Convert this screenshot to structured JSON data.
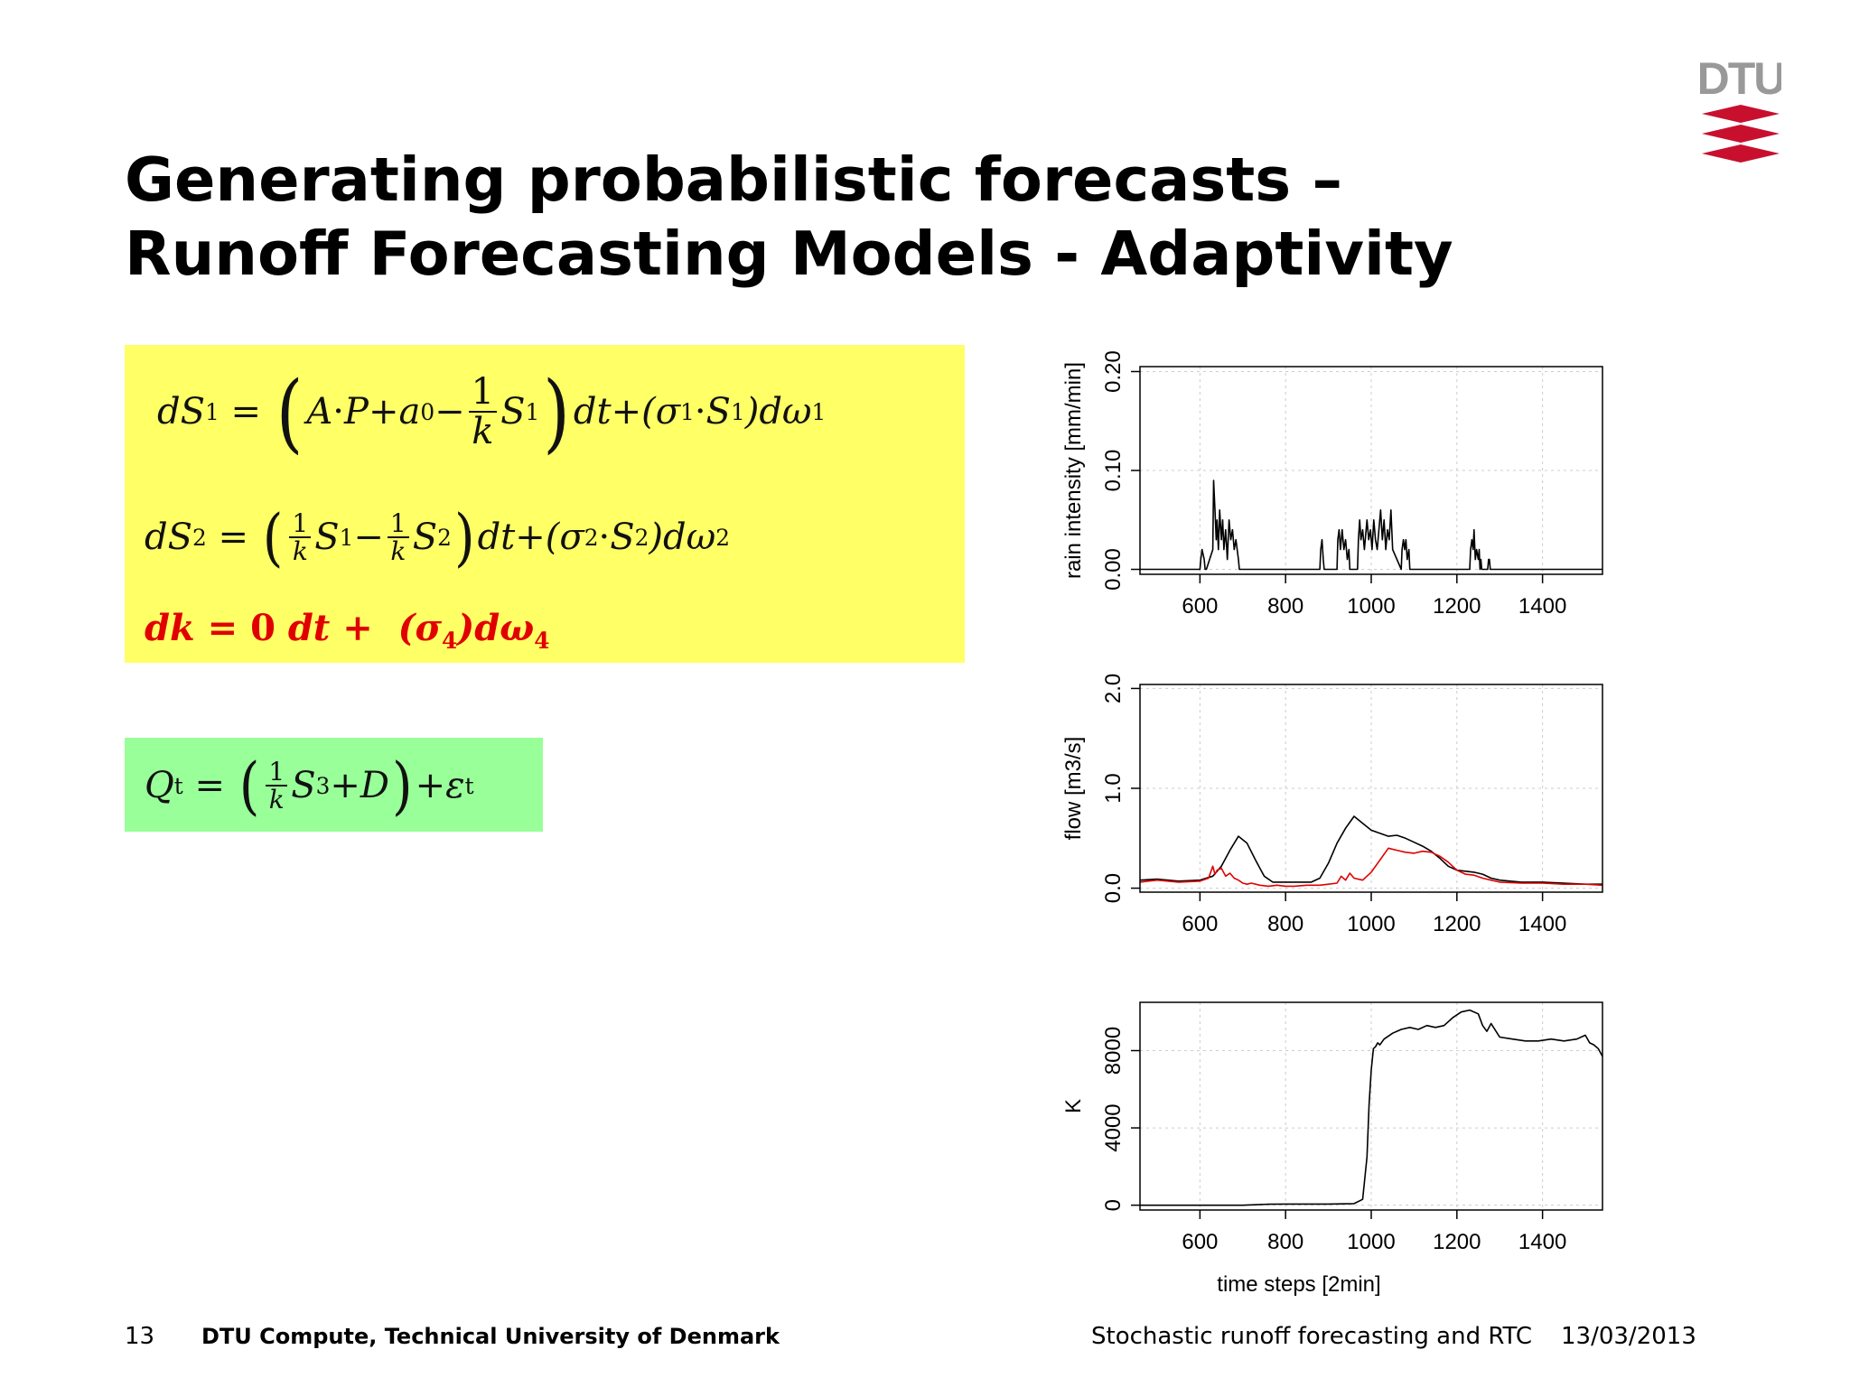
{
  "slide": {
    "title_line1": "Generating probabilistic forecasts –",
    "title_line2": "Runoff Forecasting Models - Adaptivity",
    "logo_text": "DTU",
    "page_number": "13",
    "organization": "DTU Compute, Technical University of Denmark",
    "presentation_title": "Stochastic runoff forecasting and RTC",
    "date": "13/03/2013"
  },
  "colors": {
    "yellow_box": "#ffff66",
    "green_box": "#99ff99",
    "highlight_red": "#e00000",
    "logo_red": "#c8102e",
    "logo_gray": "#999999"
  },
  "chart_data": [
    {
      "type": "line",
      "title": "",
      "xlabel": "",
      "ylabel": "rain intensity [mm/min]",
      "xlim": [
        460,
        1540
      ],
      "ylim": [
        -0.005,
        0.205
      ],
      "xticks": [
        600,
        800,
        1000,
        1200,
        1400
      ],
      "yticks": [
        "0.00",
        "0.10",
        "0.20"
      ],
      "grid": true,
      "series": [
        {
          "color": "#000000",
          "x": [
            460,
            600,
            602,
            605,
            610,
            612,
            615,
            630,
            632,
            635,
            638,
            640,
            643,
            646,
            650,
            653,
            656,
            660,
            664,
            668,
            672,
            676,
            680,
            684,
            690,
            692,
            880,
            882,
            885,
            888,
            890,
            920,
            922,
            925,
            928,
            932,
            936,
            940,
            944,
            948,
            950,
            968,
            970,
            973,
            976,
            980,
            984,
            990,
            994,
            998,
            1002,
            1006,
            1010,
            1014,
            1018,
            1022,
            1026,
            1030,
            1034,
            1038,
            1042,
            1046,
            1050,
            1070,
            1072,
            1075,
            1078,
            1081,
            1084,
            1088,
            1090,
            1230,
            1232,
            1235,
            1238,
            1240,
            1243,
            1246,
            1250,
            1252,
            1254,
            1256,
            1258,
            1272,
            1274,
            1276,
            1278,
            1280,
            1540
          ],
          "y": [
            0,
            0,
            0.01,
            0.02,
            0.01,
            0,
            0,
            0.02,
            0.09,
            0.06,
            0.03,
            0.05,
            0.02,
            0.06,
            0.03,
            0.05,
            0.02,
            0.04,
            0.01,
            0.05,
            0.03,
            0.04,
            0.02,
            0.03,
            0.01,
            0,
            0,
            0.02,
            0.03,
            0.01,
            0,
            0,
            0.03,
            0.04,
            0.02,
            0.04,
            0.02,
            0.03,
            0.01,
            0.02,
            0,
            0,
            0.03,
            0.05,
            0.03,
            0.04,
            0.02,
            0.05,
            0.03,
            0.04,
            0.02,
            0.05,
            0.03,
            0.02,
            0.04,
            0.06,
            0.03,
            0.05,
            0.02,
            0.04,
            0.03,
            0.06,
            0.02,
            0,
            0.02,
            0.03,
            0.02,
            0.03,
            0.01,
            0.02,
            0,
            0,
            0.02,
            0.03,
            0.02,
            0.04,
            0.01,
            0.02,
            0.01,
            0.02,
            0,
            0.01,
            0,
            0,
            0.01,
            0.01,
            0,
            0,
            0
          ]
        }
      ]
    },
    {
      "type": "line",
      "title": "",
      "xlabel": "",
      "ylabel": "flow [m3/s]",
      "xlim": [
        460,
        1540
      ],
      "ylim": [
        -0.04,
        2.04
      ],
      "xticks": [
        600,
        800,
        1000,
        1200,
        1400
      ],
      "yticks": [
        "0.0",
        "1.0",
        "2.0"
      ],
      "grid": true,
      "series": [
        {
          "color": "#000000",
          "x": [
            460,
            500,
            550,
            600,
            630,
            650,
            670,
            690,
            710,
            730,
            750,
            770,
            790,
            820,
            860,
            880,
            900,
            920,
            940,
            960,
            980,
            1000,
            1020,
            1040,
            1060,
            1080,
            1100,
            1120,
            1140,
            1160,
            1180,
            1200,
            1220,
            1240,
            1260,
            1280,
            1300,
            1350,
            1400,
            1450,
            1500,
            1540
          ],
          "y": [
            0.08,
            0.09,
            0.07,
            0.08,
            0.12,
            0.22,
            0.38,
            0.52,
            0.45,
            0.28,
            0.12,
            0.06,
            0.06,
            0.06,
            0.06,
            0.1,
            0.25,
            0.45,
            0.6,
            0.72,
            0.65,
            0.58,
            0.55,
            0.52,
            0.53,
            0.5,
            0.46,
            0.42,
            0.37,
            0.3,
            0.22,
            0.18,
            0.17,
            0.16,
            0.14,
            0.1,
            0.08,
            0.06,
            0.06,
            0.05,
            0.04,
            0.04
          ]
        },
        {
          "color": "#e00000",
          "x": [
            460,
            500,
            550,
            600,
            620,
            630,
            635,
            640,
            650,
            660,
            670,
            680,
            690,
            700,
            710,
            720,
            740,
            760,
            780,
            800,
            820,
            850,
            880,
            900,
            920,
            930,
            940,
            950,
            960,
            980,
            1000,
            1020,
            1040,
            1060,
            1080,
            1100,
            1120,
            1140,
            1160,
            1180,
            1200,
            1220,
            1240,
            1260,
            1280,
            1300,
            1350,
            1400,
            1450,
            1500,
            1540
          ],
          "y": [
            0.06,
            0.08,
            0.06,
            0.07,
            0.1,
            0.22,
            0.14,
            0.18,
            0.2,
            0.12,
            0.15,
            0.1,
            0.08,
            0.05,
            0.04,
            0.05,
            0.03,
            0.02,
            0.03,
            0.02,
            0.02,
            0.03,
            0.03,
            0.04,
            0.05,
            0.12,
            0.08,
            0.15,
            0.1,
            0.08,
            0.16,
            0.28,
            0.4,
            0.38,
            0.36,
            0.35,
            0.37,
            0.36,
            0.32,
            0.26,
            0.18,
            0.14,
            0.13,
            0.1,
            0.08,
            0.06,
            0.05,
            0.05,
            0.04,
            0.04,
            0.03
          ]
        }
      ]
    },
    {
      "type": "line",
      "title": "",
      "xlabel": "time steps [2min]",
      "ylabel": "K",
      "xlim": [
        460,
        1540
      ],
      "ylim": [
        -250,
        10500
      ],
      "xticks": [
        600,
        800,
        1000,
        1200,
        1400
      ],
      "yticks": [
        "0",
        "4000",
        "8000"
      ],
      "grid": true,
      "series": [
        {
          "color": "#000000",
          "x": [
            460,
            700,
            760,
            800,
            900,
            960,
            980,
            990,
            995,
            1000,
            1005,
            1010,
            1015,
            1020,
            1030,
            1050,
            1070,
            1090,
            1110,
            1130,
            1150,
            1170,
            1190,
            1210,
            1230,
            1250,
            1260,
            1270,
            1280,
            1300,
            1330,
            1360,
            1390,
            1420,
            1450,
            1480,
            1500,
            1510,
            1520,
            1530,
            1540
          ],
          "y": [
            0,
            0,
            50,
            60,
            60,
            80,
            300,
            2500,
            5200,
            7000,
            8100,
            8200,
            8400,
            8300,
            8600,
            8900,
            9100,
            9200,
            9100,
            9300,
            9200,
            9300,
            9700,
            10000,
            10100,
            9900,
            9300,
            9000,
            9400,
            8700,
            8600,
            8500,
            8500,
            8600,
            8500,
            8600,
            8800,
            8400,
            8300,
            8100,
            7700
          ]
        }
      ]
    }
  ]
}
